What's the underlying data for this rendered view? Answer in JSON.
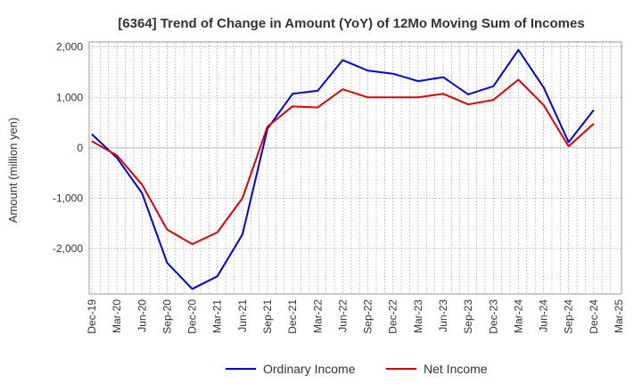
{
  "chart_data": {
    "type": "line",
    "title": "[6364]  Trend of Change in Amount (YoY) of 12Mo Moving Sum of Incomes",
    "xlabel": "",
    "ylabel": "Amount (million yen)",
    "ylim": [
      -2900,
      2100
    ],
    "yticks": [
      2000,
      1000,
      0,
      -1000,
      -2000
    ],
    "ytick_labels": [
      "2,000",
      "1,000",
      "0",
      "-1,000",
      "-2,000"
    ],
    "grid": true,
    "legend": "bottom",
    "categories": [
      "Dec-19",
      "Mar-20",
      "Jun-20",
      "Sep-20",
      "Dec-20",
      "Mar-21",
      "Jun-21",
      "Sep-21",
      "Dec-21",
      "Mar-22",
      "Jun-22",
      "Sep-22",
      "Dec-22",
      "Mar-23",
      "Jun-23",
      "Sep-23",
      "Dec-23",
      "Mar-24",
      "Jun-24",
      "Sep-24",
      "Dec-24",
      "Mar-25"
    ],
    "series": [
      {
        "name": "Ordinary Income",
        "color": "#0000dd",
        "values": [
          270,
          -200,
          -900,
          -2280,
          -2800,
          -2550,
          -1720,
          380,
          1070,
          1130,
          1740,
          1530,
          1470,
          1320,
          1400,
          1060,
          1220,
          1940,
          1200,
          110,
          750,
          null
        ]
      },
      {
        "name": "Net Income",
        "color": "#dd0000",
        "values": [
          130,
          -150,
          -730,
          -1620,
          -1910,
          -1680,
          -1000,
          420,
          820,
          800,
          1160,
          1000,
          1000,
          1000,
          1070,
          860,
          950,
          1350,
          850,
          30,
          480,
          null
        ]
      }
    ]
  }
}
